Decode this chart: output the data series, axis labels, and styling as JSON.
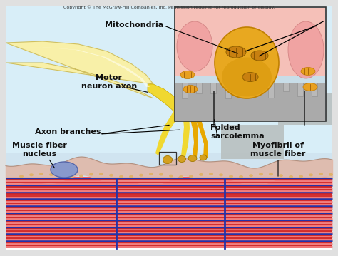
{
  "copyright_text": "Copyright © The McGraw-Hill Companies, Inc. Permission required for reproduction or display.",
  "bg_light_blue": "#d8eef8",
  "bg_white": "#f5f5f5",
  "muscle_pink_bg": "#f5b8b0",
  "muscle_red1": "#e85050",
  "muscle_red2": "#d03030",
  "muscle_blue": "#2233aa",
  "muscle_stripe_pink": "#f07070",
  "axon_yellow_light": "#f8f0a0",
  "axon_yellow": "#f0d830",
  "axon_yellow_dark": "#c8a800",
  "axon_orange": "#e8a800",
  "terminal_orange": "#e8a020",
  "nucleus_blue": "#7799cc",
  "inset_bg_pink": "#f5c0b8",
  "inset_bg_blue": "#c8dde8",
  "inset_border": "#222222",
  "gray_arrow": "#999999",
  "gray_blur": "#aab0b0",
  "fold_gray": "#888888",
  "mito_orange": "#d49020",
  "labels": {
    "mitochondria": "Mitochondria",
    "motor_neuron": "Motor\nneuron axon",
    "axon_branches": "Axon branches",
    "muscle_fiber_nucleus": "Muscle fiber\nnucleus",
    "folded_sarcolemma": "Folded\nsarcolemma",
    "myofibril": "Myofibril of\nmuscle fiber"
  },
  "figsize": [
    4.74,
    3.59
  ],
  "dpi": 100
}
